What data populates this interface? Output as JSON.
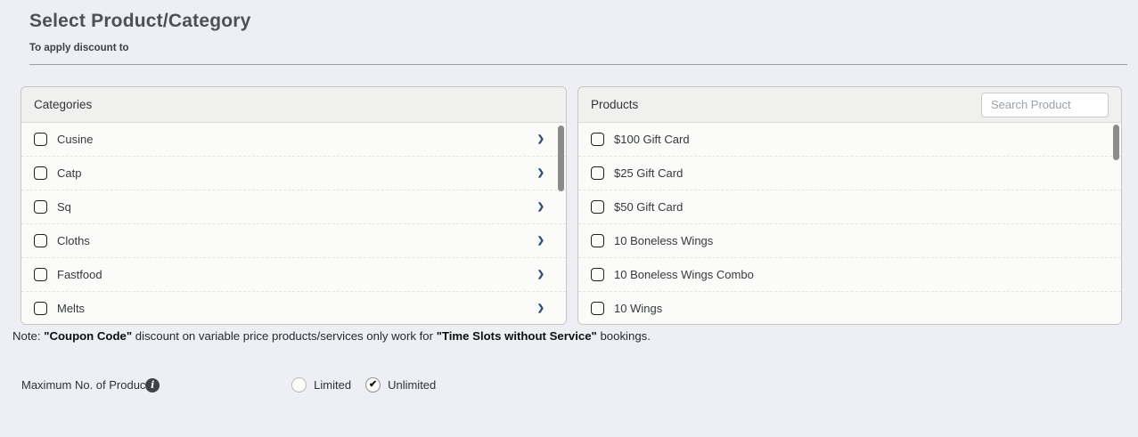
{
  "header": {
    "title": "Select Product/Category",
    "subtitle": "To apply discount to"
  },
  "categories_panel": {
    "title": "Categories",
    "items": [
      {
        "label": "Cusine"
      },
      {
        "label": "Catp"
      },
      {
        "label": "Sq"
      },
      {
        "label": "Cloths"
      },
      {
        "label": "Fastfood"
      },
      {
        "label": "Melts"
      }
    ]
  },
  "products_panel": {
    "title": "Products",
    "search_placeholder": "Search Product",
    "items": [
      {
        "label": "$100 Gift Card"
      },
      {
        "label": "$25 Gift Card"
      },
      {
        "label": "$50 Gift Card"
      },
      {
        "label": "10 Boneless Wings"
      },
      {
        "label": "10 Boneless Wings Combo"
      },
      {
        "label": "10 Wings"
      }
    ]
  },
  "note": {
    "prefix": "Note: ",
    "bold_1": "\"Coupon Code\"",
    "middle": " discount on variable price products/services only work for ",
    "bold_2": "\"Time Slots without Service\"",
    "suffix": " bookings."
  },
  "max_products": {
    "label": "Maximum No. of Products:",
    "options": [
      {
        "label": "Limited",
        "selected": false
      },
      {
        "label": "Unlimited",
        "selected": true
      }
    ]
  },
  "icons": {
    "chevron_right": "❯",
    "check": "✔",
    "info": "i"
  },
  "colors": {
    "page_background": "#edeff4",
    "panel_background": "#fbfbfa",
    "panel_header_background": "#f0f0ee",
    "panel_border": "#c5c6c4",
    "row_separator_dashed": "#e8e4d6",
    "chevron": "#2f4f72",
    "scrollbar_thumb": "#8b8b8b",
    "info_icon_background": "#3f4347",
    "title_text": "#4b5158"
  }
}
